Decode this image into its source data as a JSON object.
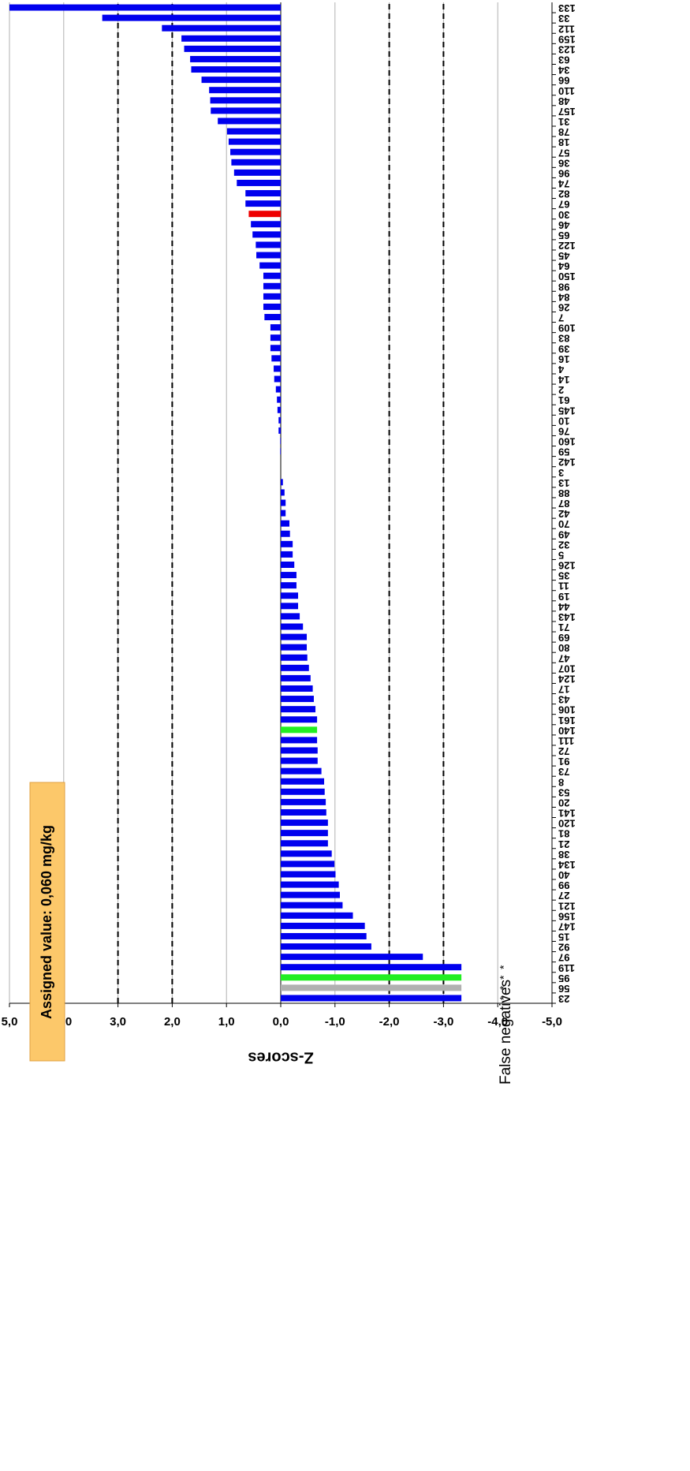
{
  "chart_data": {
    "type": "bar",
    "axis_title": "Z-scores",
    "annotation": "Assigned value: 0,060 mg/kg",
    "false_negatives": {
      "label": "False negatives",
      "markers": [
        "*",
        "*",
        "*",
        "*"
      ],
      "categories": [
        "23",
        "56",
        "95",
        "119"
      ]
    },
    "categories": [
      "23",
      "56",
      "95",
      "119",
      "97",
      "92",
      "15",
      "147",
      "156",
      "121",
      "27",
      "99",
      "40",
      "134",
      "38",
      "21",
      "81",
      "120",
      "141",
      "20",
      "53",
      "8",
      "73",
      "91",
      "72",
      "111",
      "140",
      "161",
      "106",
      "43",
      "17",
      "124",
      "107",
      "47",
      "80",
      "69",
      "71",
      "143",
      "44",
      "19",
      "11",
      "35",
      "126",
      "5",
      "32",
      "49",
      "70",
      "42",
      "87",
      "88",
      "13",
      "3",
      "142",
      "59",
      "160",
      "76",
      "10",
      "145",
      "61",
      "2",
      "14",
      "4",
      "16",
      "39",
      "83",
      "109",
      "7",
      "26",
      "84",
      "98",
      "150",
      "64",
      "45",
      "122",
      "65",
      "46",
      "30",
      "67",
      "82",
      "74",
      "96",
      "36",
      "57",
      "18",
      "78",
      "31",
      "157",
      "48",
      "110",
      "66",
      "34",
      "63",
      "123",
      "159",
      "112",
      "33",
      "133"
    ],
    "values": [
      -3.33,
      -3.33,
      -3.33,
      -3.33,
      -2.62,
      -1.67,
      -1.58,
      -1.55,
      -1.33,
      -1.14,
      -1.09,
      -1.07,
      -1.01,
      -0.99,
      -0.94,
      -0.87,
      -0.87,
      -0.87,
      -0.84,
      -0.83,
      -0.81,
      -0.8,
      -0.75,
      -0.68,
      -0.68,
      -0.67,
      -0.67,
      -0.67,
      -0.64,
      -0.61,
      -0.59,
      -0.55,
      -0.52,
      -0.49,
      -0.48,
      -0.48,
      -0.41,
      -0.35,
      -0.32,
      -0.32,
      -0.29,
      -0.29,
      -0.25,
      -0.22,
      -0.22,
      -0.17,
      -0.16,
      -0.09,
      -0.09,
      -0.07,
      -0.04,
      0,
      0,
      0.01,
      0.01,
      0.04,
      0.04,
      0.06,
      0.07,
      0.09,
      0.12,
      0.13,
      0.17,
      0.19,
      0.19,
      0.19,
      0.3,
      0.32,
      0.32,
      0.32,
      0.32,
      0.39,
      0.45,
      0.46,
      0.52,
      0.55,
      0.59,
      0.65,
      0.65,
      0.81,
      0.86,
      0.91,
      0.93,
      0.96,
      0.99,
      1.16,
      1.29,
      1.3,
      1.32,
      1.46,
      1.65,
      1.67,
      1.78,
      1.83,
      2.19,
      3.29,
      5.0
    ],
    "colors": [
      "#0000ee",
      "#b0b0b0",
      "#22ee22",
      "#0000ee",
      "#0000ee",
      "#0000ee",
      "#0000ee",
      "#0000ee",
      "#0000ee",
      "#0000ee",
      "#0000ee",
      "#0000ee",
      "#0000ee",
      "#0000ee",
      "#0000ee",
      "#0000ee",
      "#0000ee",
      "#0000ee",
      "#0000ee",
      "#0000ee",
      "#0000ee",
      "#0000ee",
      "#0000ee",
      "#0000ee",
      "#0000ee",
      "#0000ee",
      "#22ee22",
      "#0000ee",
      "#0000ee",
      "#0000ee",
      "#0000ee",
      "#0000ee",
      "#0000ee",
      "#0000ee",
      "#0000ee",
      "#0000ee",
      "#0000ee",
      "#0000ee",
      "#0000ee",
      "#0000ee",
      "#0000ee",
      "#0000ee",
      "#0000ee",
      "#0000ee",
      "#0000ee",
      "#0000ee",
      "#0000ee",
      "#0000ee",
      "#0000ee",
      "#0000ee",
      "#0000ee",
      "#0000ee",
      "#0000ee",
      "#0000ee",
      "#0000ee",
      "#0000ee",
      "#0000ee",
      "#0000ee",
      "#0000ee",
      "#0000ee",
      "#0000ee",
      "#0000ee",
      "#0000ee",
      "#0000ee",
      "#0000ee",
      "#0000ee",
      "#0000ee",
      "#0000ee",
      "#0000ee",
      "#0000ee",
      "#0000ee",
      "#0000ee",
      "#0000ee",
      "#0000ee",
      "#0000ee",
      "#0000ee",
      "#ee0000",
      "#0000ee",
      "#0000ee",
      "#0000ee",
      "#0000ee",
      "#0000ee",
      "#0000ee",
      "#0000ee",
      "#0000ee",
      "#0000ee",
      "#0000ee",
      "#0000ee",
      "#0000ee",
      "#0000ee",
      "#0000ee",
      "#0000ee",
      "#0000ee",
      "#0000ee",
      "#0000ee",
      "#0000ee",
      "#0000ee"
    ],
    "ylim": [
      -5,
      5
    ],
    "yticks": [
      {
        "value": -5,
        "label": "-5,0"
      },
      {
        "value": -4,
        "label": "-4,0"
      },
      {
        "value": -3,
        "label": "-3,0"
      },
      {
        "value": -2,
        "label": "-2,0"
      },
      {
        "value": -1,
        "label": "-1,0"
      },
      {
        "value": 0,
        "label": "0,0"
      },
      {
        "value": 1,
        "label": "1,0"
      },
      {
        "value": 2,
        "label": "2,0"
      },
      {
        "value": 3,
        "label": "3,0"
      },
      {
        "value": 4,
        "label": "4,0"
      },
      {
        "value": 5,
        "label": "5,0"
      }
    ],
    "reference_lines": [
      -3,
      -2,
      2,
      3
    ],
    "grid": true,
    "rotation": -90
  }
}
